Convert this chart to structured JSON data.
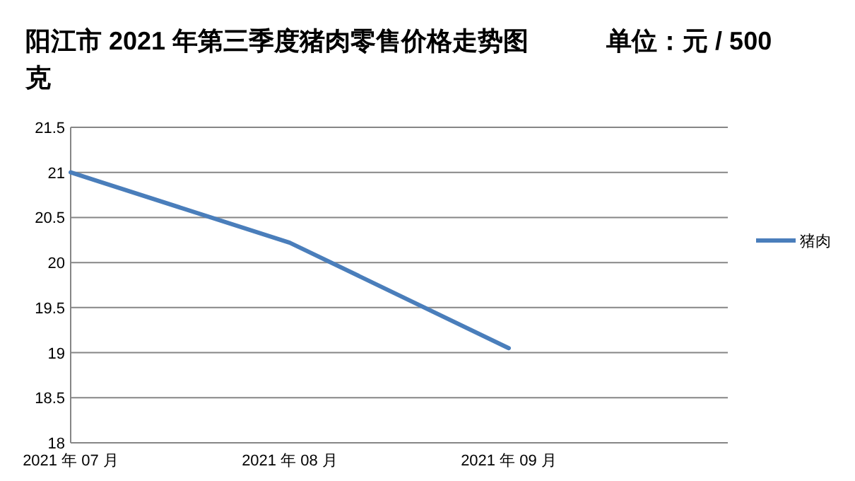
{
  "chart_data": {
    "type": "line",
    "title": "阳江市 2021 年第三季度猪肉零售价格走势图           单位：元 / 500 克",
    "categories": [
      "2021 年 07 月",
      "2021 年 08 月",
      "2021 年 09 月",
      null
    ],
    "series": [
      {
        "name": "猪肉",
        "color": "#4a7ebb",
        "values": [
          21,
          20.22,
          19.05,
          null
        ]
      }
    ],
    "ylim": [
      18,
      21.5
    ],
    "yticks": [
      18,
      18.5,
      19,
      19.5,
      20,
      20.5,
      21,
      21.5
    ],
    "grid": "y",
    "legend": "right",
    "marker": "none",
    "line_style": "solid"
  }
}
